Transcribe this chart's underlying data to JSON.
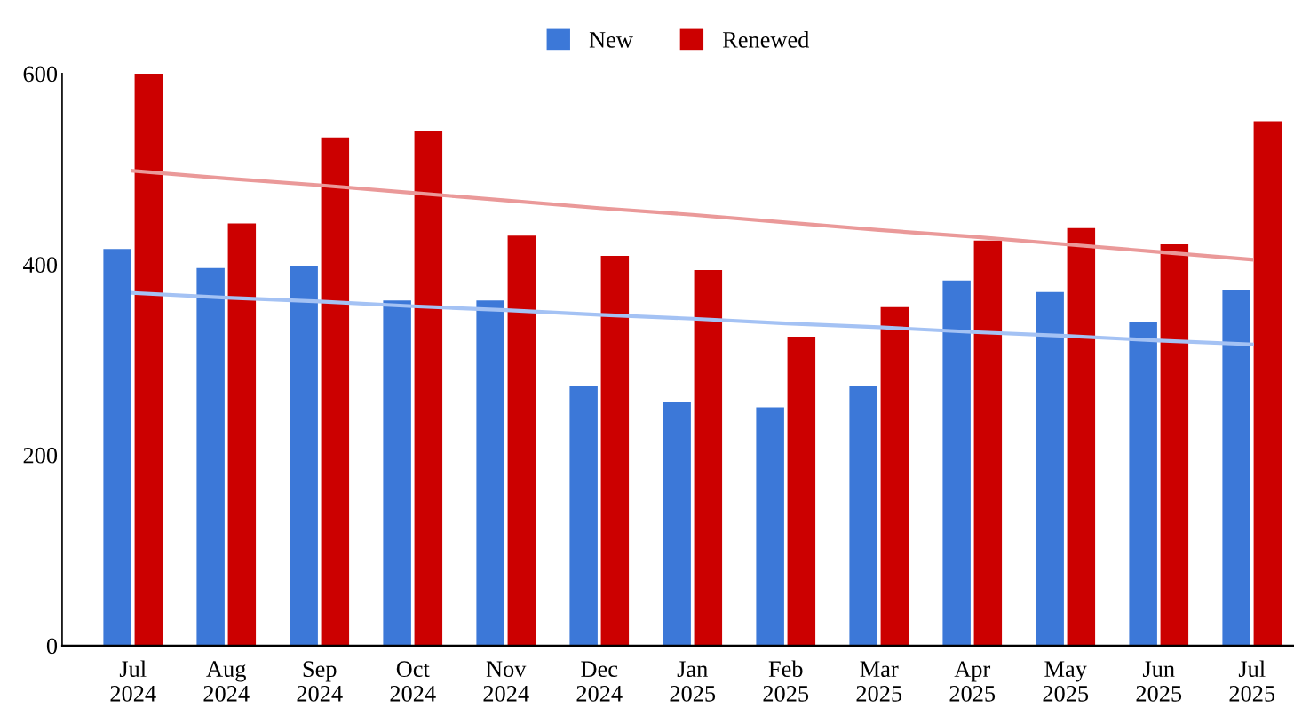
{
  "chart_data": {
    "type": "bar",
    "categories": [
      "Jul\n2024",
      "Aug\n2024",
      "Sep\n2024",
      "Oct\n2024",
      "Nov\n2024",
      "Dec\n2024",
      "Jan\n2025",
      "Feb\n2025",
      "Mar\n2025",
      "Apr\n2025",
      "May\n2025",
      "Jun\n2025",
      "Jul\n2025"
    ],
    "series": [
      {
        "name": "New",
        "color": "#3c78d8",
        "values": [
          416,
          396,
          398,
          362,
          362,
          272,
          256,
          250,
          272,
          383,
          371,
          339,
          373
        ]
      },
      {
        "name": "Renewed",
        "color": "#cc0000",
        "values": [
          600,
          443,
          533,
          540,
          430,
          409,
          394,
          324,
          355,
          425,
          438,
          421,
          550
        ]
      },
      {
        "type": "line",
        "color": "#a4c2f4",
        "values": [
          370,
          365,
          361,
          356,
          352,
          347,
          343,
          338,
          334,
          329,
          325,
          320,
          316
        ]
      },
      {
        "type": "line",
        "color": "#ea9999",
        "values": [
          498,
          490,
          483,
          475,
          467,
          459,
          452,
          444,
          436,
          429,
          421,
          413,
          405
        ]
      }
    ],
    "ylim": [
      0,
      600
    ],
    "yticks": [
      0,
      200,
      400,
      600
    ],
    "grid": false,
    "legend": "top"
  }
}
